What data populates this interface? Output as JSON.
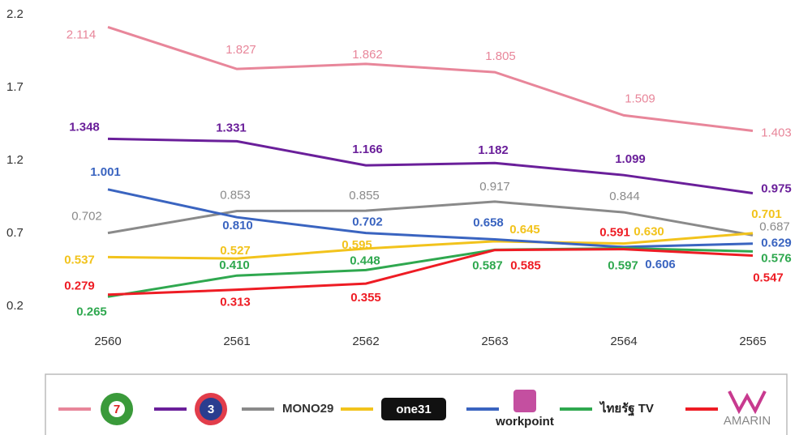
{
  "chart_data": {
    "type": "line",
    "categories": [
      "2560",
      "2561",
      "2562",
      "2563",
      "2564",
      "2565"
    ],
    "ylim": [
      0.2,
      2.2
    ],
    "yticks": [
      0.2,
      0.7,
      1.2,
      1.7,
      2.2
    ],
    "series": [
      {
        "name": "7",
        "color": "#e8869a",
        "values": [
          2.114,
          1.827,
          1.862,
          1.805,
          1.509,
          1.403
        ],
        "value_labels": [
          "2.114",
          "1.827",
          "1.862",
          "1.805",
          "1.509",
          "1.403"
        ]
      },
      {
        "name": "3",
        "color": "#6a1f9a",
        "values": [
          1.348,
          1.331,
          1.166,
          1.182,
          1.099,
          0.975
        ],
        "value_labels": [
          "1.348",
          "1.331",
          "1.166",
          "1.182",
          "1.099",
          "0.975"
        ]
      },
      {
        "name": "MONO29",
        "color": "#8a8a8a",
        "values": [
          0.702,
          0.853,
          0.855,
          0.917,
          0.844,
          0.687
        ],
        "value_labels": [
          "0.702",
          "0.853",
          "0.855",
          "0.917",
          "0.844",
          "0.687"
        ]
      },
      {
        "name": "one31",
        "color": "#f2c31c",
        "values": [
          0.537,
          0.527,
          0.595,
          0.645,
          0.63,
          0.701
        ],
        "value_labels": [
          "0.537",
          "0.527",
          "0.595",
          "0.645",
          "0.630",
          "0.701"
        ]
      },
      {
        "name": "workpoint",
        "color": "#3a64c0",
        "values": [
          1.001,
          0.81,
          0.702,
          0.658,
          0.606,
          0.629
        ],
        "value_labels": [
          "1.001",
          "0.810",
          "0.702",
          "0.658",
          "0.606",
          "0.629"
        ]
      },
      {
        "name": "ไทยรัฐ TV",
        "color": "#2fa84f",
        "values": [
          0.265,
          0.41,
          0.448,
          0.587,
          0.597,
          0.576
        ],
        "value_labels": [
          "0.265",
          "0.410",
          "0.448",
          "0.587",
          "0.597",
          "0.576"
        ]
      },
      {
        "name": "AMARIN",
        "color": "#ee1c24",
        "values": [
          0.279,
          0.313,
          0.355,
          0.585,
          0.591,
          0.547
        ],
        "value_labels": [
          "0.279",
          "0.313",
          "0.355",
          "0.585",
          "0.591",
          "0.547"
        ]
      }
    ]
  }
}
